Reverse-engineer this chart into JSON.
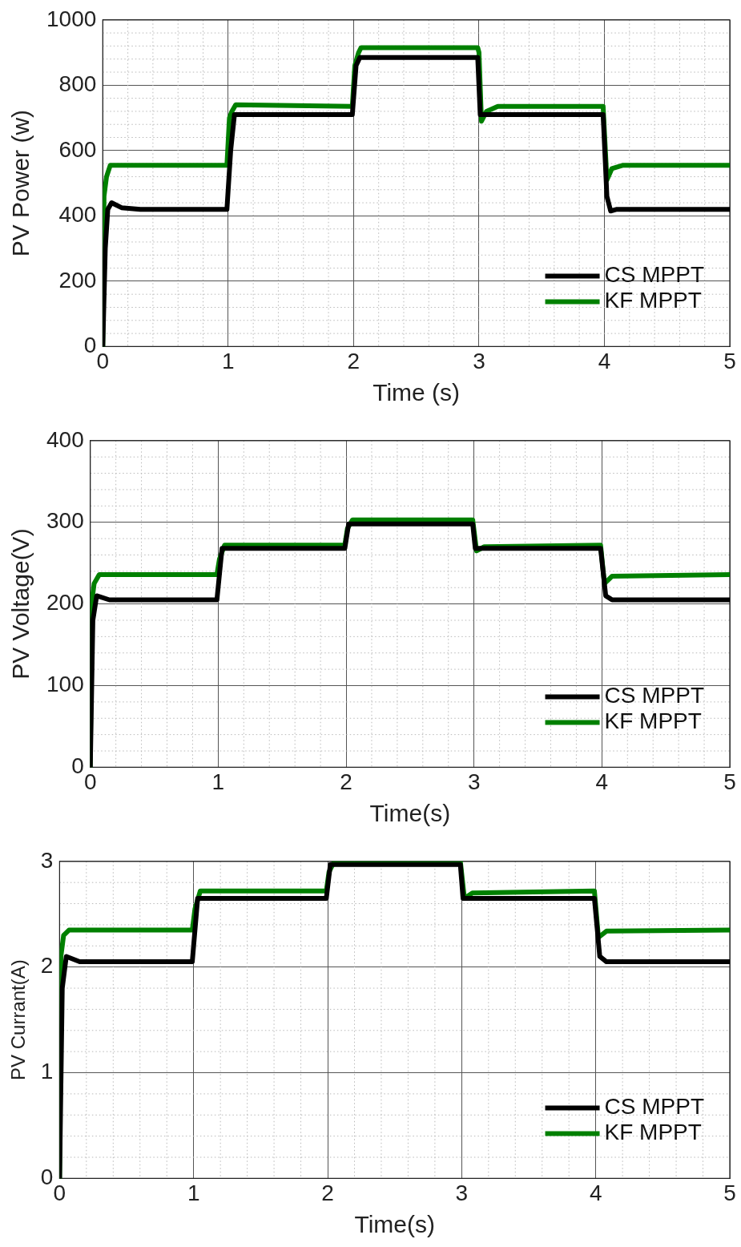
{
  "chart_data": [
    {
      "type": "line",
      "xlabel": "Time (s)",
      "ylabel": "PV Power (w)",
      "xlim": [
        0,
        5
      ],
      "xticks": [
        0,
        1,
        2,
        3,
        4,
        5
      ],
      "ylim": [
        0,
        1000
      ],
      "yticks": [
        0,
        200,
        400,
        600,
        800,
        1000
      ],
      "grid": true,
      "legend": "bottom right",
      "marker": "none",
      "line_style": "solid",
      "series": [
        {
          "name": "CS MPPT",
          "color": "#000000",
          "x": [
            0,
            0.02,
            0.04,
            0.07,
            0.15,
            0.3,
            0.99,
            1.02,
            1.05,
            1.99,
            2.02,
            2.05,
            2.99,
            3.01,
            3.99,
            4.02,
            4.05,
            4.1,
            5
          ],
          "values": [
            0,
            300,
            420,
            440,
            425,
            420,
            420,
            600,
            710,
            710,
            860,
            885,
            885,
            710,
            710,
            460,
            415,
            420,
            420
          ]
        },
        {
          "name": "KF MPPT",
          "color": "#008000",
          "x": [
            0,
            0.01,
            0.03,
            0.06,
            0.99,
            1.01,
            1.03,
            1.06,
            1.99,
            2.01,
            2.04,
            2.06,
            2.99,
            3.0,
            3.02,
            3.06,
            3.15,
            3.99,
            4.02,
            4.06,
            4.15,
            5
          ],
          "values": [
            0,
            460,
            520,
            555,
            555,
            700,
            720,
            740,
            735,
            860,
            900,
            915,
            915,
            900,
            690,
            720,
            735,
            735,
            510,
            545,
            555,
            555
          ]
        }
      ]
    },
    {
      "type": "line",
      "xlabel": "Time(s)",
      "ylabel": "PV Voltage(V)",
      "xlim": [
        0,
        5
      ],
      "xticks": [
        0,
        1,
        2,
        3,
        4,
        5
      ],
      "ylim": [
        0,
        400
      ],
      "yticks": [
        0,
        100,
        200,
        300,
        400
      ],
      "grid": true,
      "legend": "bottom right",
      "marker": "none",
      "line_style": "solid",
      "series": [
        {
          "name": "CS MPPT",
          "color": "#000000",
          "x": [
            0,
            0.02,
            0.05,
            0.15,
            0.99,
            1.03,
            1.99,
            2.02,
            2.99,
            3.01,
            3.99,
            4.03,
            4.08,
            5
          ],
          "values": [
            0,
            180,
            210,
            205,
            205,
            268,
            268,
            298,
            298,
            268,
            268,
            210,
            205,
            205
          ]
        },
        {
          "name": "KF MPPT",
          "color": "#008000",
          "x": [
            0,
            0.01,
            0.03,
            0.07,
            0.99,
            1.01,
            1.05,
            1.99,
            2.01,
            2.05,
            2.99,
            3.02,
            3.08,
            3.99,
            4.02,
            4.08,
            5
          ],
          "values": [
            0,
            200,
            225,
            236,
            236,
            255,
            272,
            272,
            292,
            303,
            303,
            265,
            270,
            272,
            225,
            234,
            236
          ]
        }
      ]
    },
    {
      "type": "line",
      "xlabel": "Time(s)",
      "ylabel": "PV Currant(A)",
      "xlim": [
        0,
        5
      ],
      "xticks": [
        0,
        1,
        2,
        3,
        4,
        5
      ],
      "ylim": [
        0,
        3
      ],
      "yticks": [
        0,
        1,
        2,
        3
      ],
      "grid": true,
      "legend": "bottom right",
      "marker": "none",
      "line_style": "solid",
      "series": [
        {
          "name": "CS MPPT",
          "color": "#000000",
          "x": [
            0,
            0.02,
            0.05,
            0.15,
            0.99,
            1.03,
            1.99,
            2.02,
            2.99,
            3.01,
            3.99,
            4.03,
            4.08,
            5
          ],
          "values": [
            0,
            1.8,
            2.1,
            2.05,
            2.05,
            2.65,
            2.65,
            2.97,
            2.97,
            2.65,
            2.65,
            2.1,
            2.05,
            2.05
          ]
        },
        {
          "name": "KF MPPT",
          "color": "#008000",
          "x": [
            0,
            0.01,
            0.03,
            0.07,
            0.99,
            1.01,
            1.05,
            1.99,
            2.01,
            2.05,
            2.99,
            3.02,
            3.08,
            3.99,
            4.02,
            4.08,
            5
          ],
          "values": [
            0,
            2.1,
            2.3,
            2.35,
            2.35,
            2.55,
            2.72,
            2.72,
            2.9,
            3.0,
            3.0,
            2.65,
            2.7,
            2.72,
            2.28,
            2.34,
            2.35
          ]
        }
      ]
    }
  ]
}
